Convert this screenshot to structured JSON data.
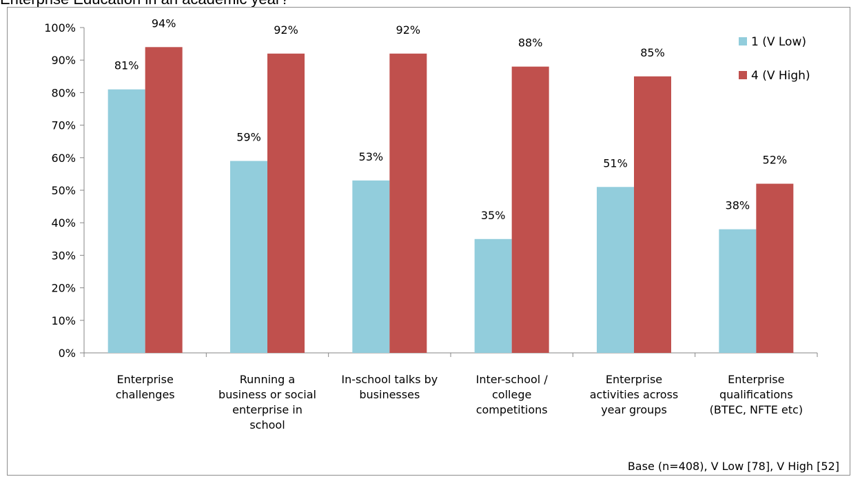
{
  "title_fragment": "Enterprise Education in an academic year?",
  "footnote": "Base (n=408), V Low [78], V High [52]",
  "chart_data": {
    "type": "bar",
    "categories": [
      [
        "Enterprise",
        "challenges"
      ],
      [
        "Running a",
        "business or social",
        "enterprise in",
        "school"
      ],
      [
        "In-school talks by",
        "businesses"
      ],
      [
        "Inter-school /",
        "college",
        "competitions"
      ],
      [
        "Enterprise",
        "activities across",
        "year groups"
      ],
      [
        "Enterprise",
        "qualifications",
        "(BTEC, NFTE etc)"
      ]
    ],
    "series": [
      {
        "name": "1 (V Low)",
        "color": "#92cddc",
        "values": [
          81,
          59,
          53,
          35,
          51,
          38
        ],
        "labels": [
          "81%",
          "59%",
          "53%",
          "35%",
          "51%",
          "38%"
        ]
      },
      {
        "name": "4 (V High)",
        "color": "#c0504d",
        "values": [
          94,
          92,
          92,
          88,
          85,
          52
        ],
        "labels": [
          "94%",
          "92%",
          "92%",
          "88%",
          "85%",
          "52%"
        ]
      }
    ],
    "ylim": [
      0,
      100
    ],
    "yticks": [
      0,
      10,
      20,
      30,
      40,
      50,
      60,
      70,
      80,
      90,
      100
    ],
    "ytick_labels": [
      "0%",
      "10%",
      "20%",
      "30%",
      "40%",
      "50%",
      "60%",
      "70%",
      "80%",
      "90%",
      "100%"
    ],
    "grid": false,
    "legend_position": "top-right"
  }
}
